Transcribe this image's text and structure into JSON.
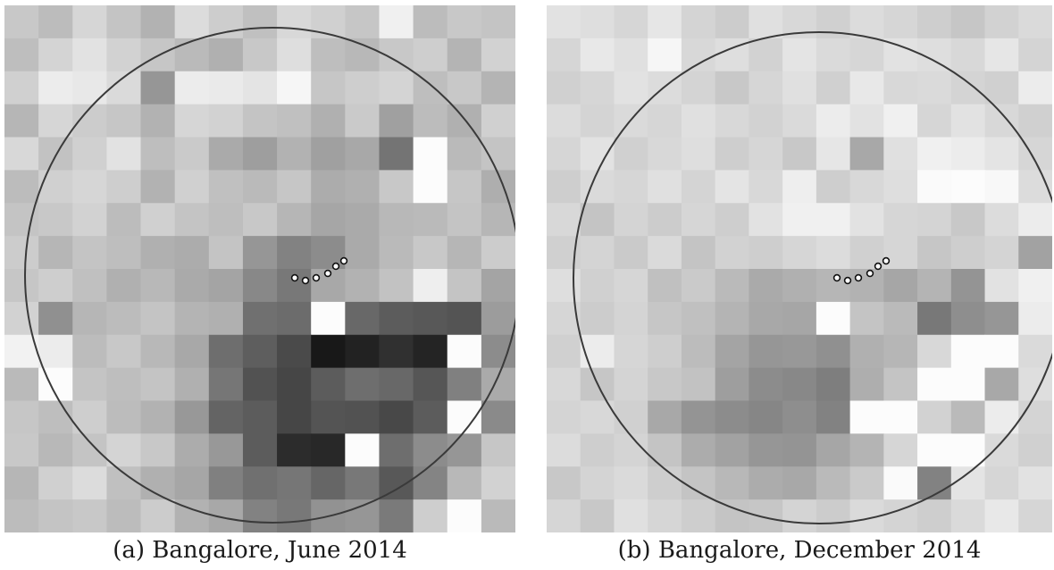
{
  "top_clipped_text": "",
  "panels": [
    {
      "id": "a",
      "caption": "(a) Bangalore, June 2014",
      "grid": {
        "cols": 15,
        "rows": 16,
        "shades": [
          [
            200,
            188,
            214,
            196,
            178,
            220,
            205,
            192,
            216,
            208,
            198,
            240,
            188,
            200,
            196
          ],
          [
            190,
            212,
            226,
            210,
            198,
            186,
            176,
            200,
            222,
            190,
            184,
            200,
            206,
            180,
            210
          ],
          [
            208,
            236,
            232,
            218,
            150,
            236,
            234,
            228,
            246,
            198,
            206,
            212,
            190,
            200,
            180
          ],
          [
            182,
            214,
            204,
            198,
            178,
            214,
            210,
            196,
            192,
            176,
            202,
            160,
            188,
            176,
            208
          ],
          [
            216,
            194,
            208,
            226,
            190,
            202,
            170,
            158,
            178,
            160,
            168,
            116,
            252,
            186,
            196
          ],
          [
            188,
            208,
            214,
            206,
            178,
            208,
            192,
            186,
            198,
            172,
            176,
            200,
            252,
            198,
            174
          ],
          [
            196,
            200,
            210,
            188,
            208,
            196,
            190,
            200,
            182,
            166,
            170,
            184,
            186,
            196,
            182
          ],
          [
            204,
            182,
            196,
            190,
            176,
            172,
            196,
            150,
            130,
            140,
            170,
            186,
            200,
            182,
            204
          ],
          [
            198,
            206,
            192,
            176,
            184,
            170,
            164,
            136,
            120,
            168,
            178,
            194,
            238,
            196,
            164
          ],
          [
            210,
            144,
            182,
            188,
            196,
            180,
            176,
            112,
            108,
            252,
            104,
            92,
            88,
            84,
            156
          ],
          [
            242,
            236,
            188,
            200,
            184,
            168,
            110,
            94,
            74,
            24,
            34,
            48,
            36,
            252,
            140
          ],
          [
            186,
            252,
            196,
            190,
            196,
            176,
            118,
            82,
            70,
            92,
            110,
            104,
            86,
            128,
            170
          ],
          [
            198,
            190,
            206,
            188,
            178,
            152,
            100,
            92,
            70,
            84,
            82,
            72,
            92,
            252,
            138
          ],
          [
            200,
            184,
            196,
            212,
            200,
            172,
            152,
            92,
            44,
            40,
            252,
            110,
            140,
            150,
            198
          ],
          [
            182,
            208,
            220,
            192,
            176,
            166,
            128,
            112,
            118,
            102,
            120,
            88,
            132,
            184,
            210
          ],
          [
            188,
            196,
            200,
            188,
            204,
            178,
            168,
            130,
            120,
            146,
            150,
            122,
            206,
            252,
            186
          ]
        ]
      },
      "dots": [
        {
          "x": 325,
          "y": 305
        },
        {
          "x": 337,
          "y": 308
        },
        {
          "x": 349,
          "y": 305
        },
        {
          "x": 362,
          "y": 300
        },
        {
          "x": 371,
          "y": 292
        },
        {
          "x": 380,
          "y": 286
        }
      ]
    },
    {
      "id": "b",
      "caption": "(b) Bangalore, December 2014",
      "grid": {
        "cols": 15,
        "rows": 16,
        "shades": [
          [
            226,
            222,
            214,
            230,
            212,
            204,
            224,
            216,
            208,
            220,
            214,
            206,
            198,
            210,
            218
          ],
          [
            214,
            232,
            224,
            246,
            216,
            222,
            210,
            228,
            218,
            214,
            226,
            222,
            216,
            230,
            212
          ],
          [
            208,
            214,
            226,
            220,
            212,
            200,
            214,
            224,
            208,
            232,
            216,
            218,
            212,
            208,
            236
          ],
          [
            220,
            212,
            218,
            214,
            224,
            216,
            210,
            218,
            236,
            226,
            240,
            214,
            226,
            216,
            208
          ],
          [
            214,
            226,
            208,
            216,
            222,
            206,
            214,
            200,
            230,
            168,
            224,
            240,
            236,
            228,
            214
          ],
          [
            206,
            218,
            214,
            224,
            212,
            228,
            216,
            238,
            206,
            216,
            222,
            250,
            252,
            248,
            220
          ],
          [
            216,
            196,
            212,
            204,
            214,
            206,
            226,
            240,
            240,
            226,
            214,
            212,
            200,
            220,
            236
          ],
          [
            208,
            212,
            202,
            218,
            196,
            210,
            206,
            214,
            220,
            208,
            214,
            198,
            206,
            212,
            162
          ],
          [
            222,
            208,
            214,
            192,
            202,
            186,
            170,
            176,
            182,
            178,
            166,
            180,
            148,
            226,
            240
          ],
          [
            214,
            204,
            212,
            198,
            192,
            180,
            168,
            166,
            252,
            196,
            186,
            120,
            142,
            150,
            236
          ],
          [
            208,
            236,
            214,
            206,
            188,
            164,
            150,
            152,
            144,
            176,
            182,
            216,
            252,
            252,
            218
          ],
          [
            216,
            198,
            212,
            200,
            194,
            158,
            140,
            136,
            126,
            174,
            196,
            252,
            252,
            168,
            222
          ],
          [
            212,
            216,
            208,
            168,
            148,
            140,
            134,
            142,
            130,
            252,
            252,
            210,
            186,
            236,
            212
          ],
          [
            220,
            206,
            212,
            196,
            172,
            162,
            150,
            148,
            166,
            180,
            214,
            252,
            252,
            218,
            208
          ],
          [
            200,
            212,
            218,
            206,
            196,
            184,
            172,
            168,
            186,
            202,
            250,
            130,
            228,
            214,
            226
          ],
          [
            214,
            200,
            224,
            214,
            206,
            196,
            198,
            212,
            204,
            218,
            212,
            206,
            218,
            232,
            214
          ]
        ]
      },
      "dots": [
        {
          "x": 325,
          "y": 305
        },
        {
          "x": 337,
          "y": 308
        },
        {
          "x": 349,
          "y": 305
        },
        {
          "x": 362,
          "y": 300
        },
        {
          "x": 371,
          "y": 292
        },
        {
          "x": 380,
          "y": 286
        }
      ]
    }
  ]
}
